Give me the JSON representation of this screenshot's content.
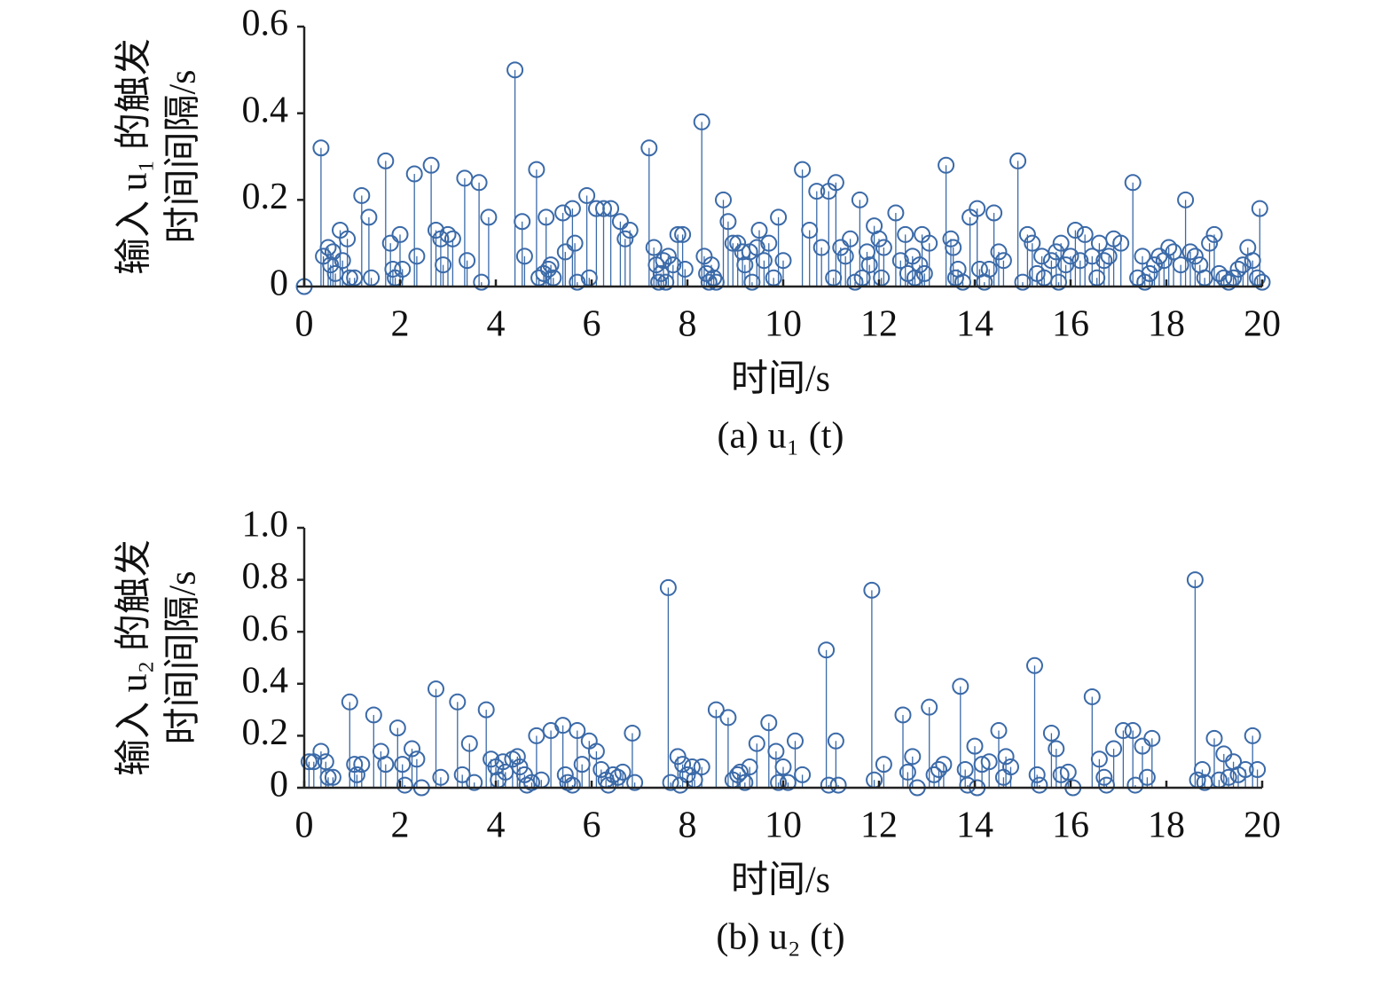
{
  "chart_data": [
    {
      "type": "stem",
      "caption": "(a) u₁ (t)",
      "xlabel": "时间/s",
      "ylabel": [
        "输入 u₁ 的触发",
        "时间间隔/s"
      ],
      "xlim": [
        0,
        20
      ],
      "xticks": [
        0,
        2,
        4,
        6,
        8,
        10,
        12,
        14,
        16,
        18,
        20
      ],
      "ylim": [
        0,
        0.6
      ],
      "yticks": [
        0,
        0.2,
        0.4,
        0.6
      ],
      "series": [
        {
          "color": "#3b6aa8",
          "x": [
            0,
            0.35,
            0.4,
            0.5,
            0.55,
            0.6,
            0.65,
            0.75,
            0.8,
            0.9,
            0.95,
            1.05,
            1.2,
            1.35,
            1.4,
            1.7,
            1.8,
            1.85,
            1.9,
            2.0,
            2.05,
            2.3,
            2.35,
            2.65,
            2.75,
            2.85,
            2.9,
            3.0,
            3.1,
            3.35,
            3.4,
            3.65,
            3.7,
            3.85,
            4.4,
            4.55,
            4.6,
            4.85,
            4.9,
            5.0,
            5.05,
            5.1,
            5.15,
            5.2,
            5.4,
            5.45,
            5.6,
            5.65,
            5.7,
            5.9,
            5.95,
            6.1,
            6.25,
            6.4,
            6.6,
            6.7,
            6.8,
            7.2,
            7.3,
            7.35,
            7.4,
            7.45,
            7.5,
            7.55,
            7.6,
            7.7,
            7.8,
            7.9,
            7.95,
            8.3,
            8.35,
            8.4,
            8.45,
            8.5,
            8.55,
            8.6,
            8.75,
            8.85,
            8.95,
            9.05,
            9.15,
            9.2,
            9.3,
            9.35,
            9.45,
            9.5,
            9.6,
            9.7,
            9.8,
            9.9,
            10.0,
            10.4,
            10.55,
            10.7,
            10.8,
            10.95,
            11.05,
            11.1,
            11.2,
            11.3,
            11.4,
            11.5,
            11.6,
            11.65,
            11.75,
            11.8,
            11.9,
            12.0,
            12.05,
            12.1,
            12.35,
            12.45,
            12.55,
            12.6,
            12.7,
            12.75,
            12.85,
            12.9,
            12.95,
            13.05,
            13.4,
            13.5,
            13.55,
            13.6,
            13.65,
            13.75,
            13.9,
            14.05,
            14.1,
            14.2,
            14.3,
            14.4,
            14.5,
            14.6,
            14.9,
            15.0,
            15.1,
            15.2,
            15.3,
            15.4,
            15.45,
            15.6,
            15.7,
            15.75,
            15.8,
            15.9,
            16.0,
            16.1,
            16.2,
            16.3,
            16.45,
            16.55,
            16.6,
            16.7,
            16.8,
            16.9,
            17.05,
            17.3,
            17.4,
            17.5,
            17.55,
            17.65,
            17.75,
            17.85,
            17.95,
            18.05,
            18.15,
            18.3,
            18.4,
            18.5,
            18.6,
            18.7,
            18.8,
            18.9,
            19.0,
            19.1,
            19.2,
            19.3,
            19.4,
            19.5,
            19.6,
            19.7,
            19.8,
            19.9,
            19.95,
            20.0
          ],
          "values": [
            0,
            0.32,
            0.07,
            0.09,
            0.05,
            0.08,
            0.03,
            0.13,
            0.06,
            0.11,
            0.02,
            0.02,
            0.21,
            0.16,
            0.02,
            0.29,
            0.1,
            0.04,
            0.02,
            0.12,
            0.04,
            0.26,
            0.07,
            0.28,
            0.13,
            0.11,
            0.05,
            0.12,
            0.11,
            0.25,
            0.06,
            0.24,
            0.01,
            0.16,
            0.5,
            0.15,
            0.07,
            0.27,
            0.02,
            0.03,
            0.16,
            0.04,
            0.05,
            0.02,
            0.17,
            0.08,
            0.18,
            0.1,
            0.01,
            0.21,
            0.02,
            0.18,
            0.18,
            0.18,
            0.15,
            0.11,
            0.13,
            0.32,
            0.09,
            0.05,
            0.01,
            0.03,
            0.06,
            0.01,
            0.07,
            0.05,
            0.12,
            0.12,
            0.04,
            0.38,
            0.07,
            0.03,
            0.01,
            0.05,
            0.02,
            0.01,
            0.2,
            0.15,
            0.1,
            0.1,
            0.08,
            0.05,
            0.08,
            0.01,
            0.09,
            0.13,
            0.06,
            0.1,
            0.02,
            0.16,
            0.06,
            0.27,
            0.13,
            0.22,
            0.09,
            0.22,
            0.02,
            0.24,
            0.09,
            0.07,
            0.11,
            0.01,
            0.2,
            0.02,
            0.08,
            0.05,
            0.14,
            0.11,
            0.02,
            0.09,
            0.17,
            0.06,
            0.12,
            0.03,
            0.07,
            0.02,
            0.05,
            0.12,
            0.03,
            0.1,
            0.28,
            0.11,
            0.09,
            0.02,
            0.04,
            0.01,
            0.16,
            0.18,
            0.04,
            0.01,
            0.04,
            0.17,
            0.08,
            0.06,
            0.29,
            0.01,
            0.12,
            0.1,
            0.03,
            0.07,
            0.02,
            0.06,
            0.08,
            0.01,
            0.1,
            0.05,
            0.07,
            0.13,
            0.06,
            0.12,
            0.07,
            0.02,
            0.1,
            0.06,
            0.07,
            0.11,
            0.1,
            0.24,
            0.02,
            0.07,
            0.01,
            0.03,
            0.05,
            0.07,
            0.06,
            0.09,
            0.08,
            0.05,
            0.2,
            0.08,
            0.07,
            0.05,
            0.02,
            0.1,
            0.12,
            0.03,
            0.02,
            0.01,
            0.02,
            0.04,
            0.05,
            0.09,
            0.06,
            0.02,
            0.18,
            0.01
          ]
        }
      ]
    },
    {
      "type": "stem",
      "caption": "(b) u₂ (t)",
      "xlabel": "时间/s",
      "ylabel": [
        "输入 u₂ 的触发",
        "时间间隔/s"
      ],
      "xlim": [
        0,
        20
      ],
      "xticks": [
        0,
        2,
        4,
        6,
        8,
        10,
        12,
        14,
        16,
        18,
        20
      ],
      "ylim": [
        0,
        1
      ],
      "yticks": [
        0,
        0.2,
        0.4,
        0.6,
        0.8,
        {
          "value": 1,
          "label": "1.0"
        }
      ],
      "series": [
        {
          "color": "#3b6aa8",
          "x": [
            0.1,
            0.2,
            0.35,
            0.45,
            0.5,
            0.6,
            0.95,
            1.05,
            1.1,
            1.2,
            1.45,
            1.6,
            1.7,
            1.95,
            2.05,
            2.1,
            2.25,
            2.35,
            2.45,
            2.75,
            2.85,
            3.2,
            3.3,
            3.45,
            3.55,
            3.8,
            3.9,
            4.0,
            4.05,
            4.15,
            4.2,
            4.35,
            4.45,
            4.5,
            4.6,
            4.65,
            4.75,
            4.85,
            4.95,
            5.15,
            5.4,
            5.45,
            5.5,
            5.6,
            5.7,
            5.8,
            5.95,
            6.1,
            6.2,
            6.3,
            6.35,
            6.45,
            6.55,
            6.65,
            6.85,
            6.9,
            7.6,
            7.65,
            7.8,
            7.85,
            7.9,
            8.0,
            8.1,
            8.15,
            8.3,
            8.6,
            8.85,
            8.95,
            9.05,
            9.1,
            9.2,
            9.3,
            9.45,
            9.7,
            9.85,
            9.9,
            10.0,
            10.1,
            10.25,
            10.4,
            10.9,
            10.95,
            11.1,
            11.15,
            11.85,
            11.9,
            12.1,
            12.5,
            12.6,
            12.7,
            12.8,
            13.05,
            13.15,
            13.25,
            13.35,
            13.7,
            13.8,
            13.85,
            14.0,
            14.05,
            14.15,
            14.3,
            14.5,
            14.6,
            14.65,
            14.75,
            15.25,
            15.3,
            15.35,
            15.6,
            15.7,
            15.8,
            15.95,
            16.05,
            16.45,
            16.6,
            16.7,
            16.75,
            16.9,
            17.1,
            17.3,
            17.35,
            17.5,
            17.6,
            17.7,
            18.6,
            18.65,
            18.75,
            18.8,
            19.0,
            19.1,
            19.2,
            19.3,
            19.4,
            19.5,
            19.65,
            19.8,
            19.9
          ],
          "values": [
            0.1,
            0.1,
            0.14,
            0.1,
            0.04,
            0.04,
            0.33,
            0.09,
            0.05,
            0.09,
            0.28,
            0.14,
            0.09,
            0.23,
            0.09,
            0.01,
            0.15,
            0.11,
            0,
            0.38,
            0.04,
            0.33,
            0.05,
            0.17,
            0.02,
            0.3,
            0.11,
            0.08,
            0.03,
            0.1,
            0.06,
            0.11,
            0.12,
            0.08,
            0.05,
            0.01,
            0.02,
            0.2,
            0.03,
            0.22,
            0.24,
            0.05,
            0.02,
            0.01,
            0.22,
            0.09,
            0.18,
            0.14,
            0.07,
            0.03,
            0.01,
            0.05,
            0.04,
            0.06,
            0.21,
            0.02,
            0.77,
            0.02,
            0.12,
            0.01,
            0.09,
            0.05,
            0.08,
            0.03,
            0.08,
            0.3,
            0.27,
            0.03,
            0.05,
            0.06,
            0.02,
            0.08,
            0.17,
            0.25,
            0.14,
            0.02,
            0.08,
            0.02,
            0.18,
            0.05,
            0.53,
            0.01,
            0.18,
            0.01,
            0.76,
            0.03,
            0.09,
            0.28,
            0.06,
            0.12,
            0,
            0.31,
            0.05,
            0.07,
            0.09,
            0.39,
            0.07,
            0.01,
            0.16,
            0,
            0.09,
            0.1,
            0.22,
            0.04,
            0.12,
            0.08,
            0.47,
            0.05,
            0.01,
            0.21,
            0.15,
            0.05,
            0.06,
            0,
            0.35,
            0.11,
            0.04,
            0.01,
            0.15,
            0.22,
            0.22,
            0.01,
            0.16,
            0.04,
            0.19,
            0.8,
            0.03,
            0.07,
            0.02,
            0.19,
            0.03,
            0.13,
            0.04,
            0.1,
            0.05,
            0.07,
            0.2,
            0.07
          ]
        }
      ]
    }
  ]
}
